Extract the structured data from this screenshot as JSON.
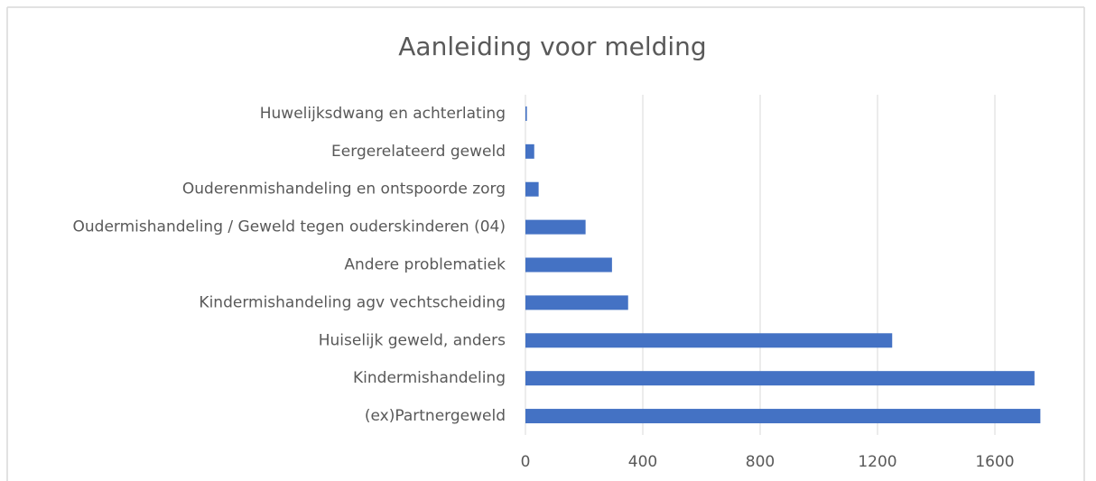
{
  "chart_data": {
    "type": "barh",
    "title": "Aanleiding voor melding",
    "categories": [
      "Huwelijksdwang en achterlating",
      "Eergerelateerd geweld",
      "Ouderenmishandeling en ontspoorde zorg",
      "Oudermishandeling / Geweld tegen ouderskinderen (04)",
      "Andere problematiek",
      "Kindermishandeling agv vechtscheiding",
      "Huiselijk geweld, anders",
      "Kindermishandeling",
      "(ex)Partnergeweld"
    ],
    "values": [
      5,
      30,
      45,
      205,
      295,
      350,
      1250,
      1735,
      1755
    ],
    "color": "#4472c4",
    "xlim": [
      0,
      1840
    ],
    "xticks": [
      0,
      400,
      800,
      1200,
      1600
    ],
    "grid": true
  }
}
